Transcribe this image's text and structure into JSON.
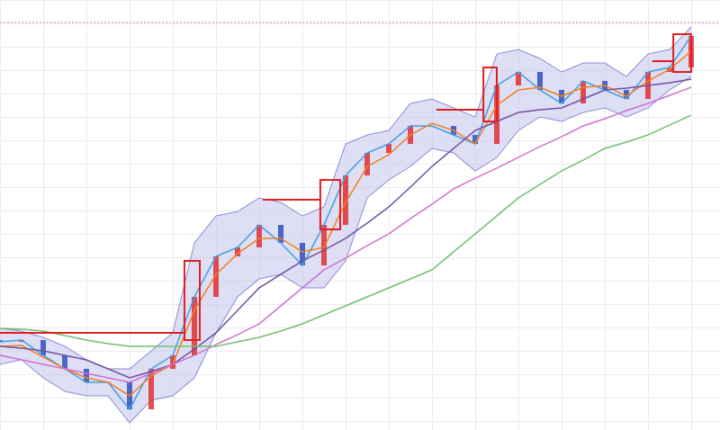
{
  "chart_data": {
    "type": "candlestick",
    "x": [
      0,
      1,
      2,
      3,
      4,
      5,
      6,
      7,
      8,
      9,
      10,
      11,
      12,
      13,
      14,
      15,
      16,
      17,
      18,
      19,
      20,
      21,
      22,
      23,
      24,
      25,
      26,
      27,
      28,
      29,
      30,
      31,
      32
    ],
    "xlim": [
      0,
      32
    ],
    "ylim": [
      0,
      478
    ],
    "candles": {
      "up_color": "#e03030",
      "down_color": "#3050c0",
      "open": [
        100,
        98,
        100,
        83,
        68,
        53,
        53,
        23,
        68,
        83,
        148,
        193,
        203,
        228,
        208,
        183,
        228,
        283,
        308,
        318,
        338,
        338,
        328,
        318,
        383,
        398,
        378,
        363,
        388,
        378,
        368,
        398,
        403
      ],
      "close": [
        98,
        100,
        83,
        68,
        53,
        53,
        23,
        68,
        83,
        148,
        193,
        203,
        228,
        208,
        183,
        228,
        283,
        308,
        318,
        338,
        338,
        328,
        318,
        383,
        398,
        378,
        363,
        388,
        378,
        368,
        398,
        403,
        438
      ]
    },
    "band": {
      "color": "#c8c8ee",
      "line_color": "#8c8cd8",
      "upper": [
        113,
        110,
        103,
        93,
        78,
        68,
        68,
        88,
        108,
        208,
        238,
        243,
        258,
        253,
        238,
        248,
        318,
        328,
        333,
        363,
        368,
        358,
        348,
        418,
        423,
        413,
        398,
        408,
        408,
        393,
        418,
        423,
        448
      ],
      "lower": [
        73,
        78,
        58,
        43,
        38,
        38,
        8,
        33,
        38,
        58,
        108,
        148,
        168,
        173,
        158,
        158,
        188,
        258,
        278,
        293,
        313,
        308,
        288,
        303,
        333,
        348,
        343,
        353,
        358,
        348,
        358,
        378,
        393
      ]
    },
    "series": [
      {
        "color": "#3fa0e0",
        "values": [
          98,
          100,
          83,
          68,
          53,
          53,
          23,
          68,
          83,
          148,
          193,
          203,
          228,
          208,
          183,
          228,
          283,
          308,
          318,
          338,
          338,
          328,
          318,
          383,
          398,
          378,
          363,
          388,
          378,
          368,
          398,
          403,
          438
        ]
      },
      {
        "color": "#f08020",
        "values": [
          93,
          94,
          81,
          68,
          58,
          53,
          38,
          60,
          73,
          133,
          173,
          196,
          213,
          213,
          198,
          203,
          253,
          293,
          306,
          328,
          341,
          333,
          318,
          361,
          378,
          381,
          371,
          381,
          383,
          371,
          388,
          401,
          421
        ]
      },
      {
        "color": "#7050a0",
        "values": [
          93,
          91,
          88,
          83,
          78,
          68,
          58,
          65,
          73,
          90,
          108,
          133,
          158,
          173,
          188,
          200,
          213,
          230,
          248,
          270,
          293,
          313,
          333,
          343,
          353,
          356,
          358,
          368,
          378,
          380,
          383,
          386,
          390
        ]
      },
      {
        "color": "#d070d0",
        "values": [
          83,
          78,
          73,
          68,
          63,
          58,
          53,
          63,
          73,
          83,
          95,
          106,
          118,
          138,
          158,
          178,
          191,
          205,
          218,
          235,
          251,
          268,
          280,
          291,
          303,
          315,
          326,
          338,
          346,
          355,
          363,
          372,
          381
        ]
      },
      {
        "color": "#70c070",
        "values": [
          113,
          112,
          110,
          105,
          100,
          96,
          93,
          93,
          93,
          93,
          93,
          98,
          103,
          110,
          118,
          128,
          138,
          148,
          158,
          168,
          178,
          198,
          218,
          238,
          258,
          273,
          288,
          300,
          313,
          320,
          328,
          339,
          350
        ]
      }
    ],
    "level": {
      "value": 453,
      "color": "#e08080"
    },
    "highlights": {
      "color": "#e02020",
      "boxes": [
        {
          "x": [
            8.54,
            9.25
          ],
          "y": [
            100,
            188
          ],
          "from": {
            "x": 0,
            "y": 108
          }
        },
        {
          "x": [
            14.83,
            15.75
          ],
          "y": [
            223,
            278
          ],
          "from": {
            "x": 12.17,
            "y": 256
          }
        },
        {
          "x": [
            22.38,
            23
          ],
          "y": [
            343,
            403
          ],
          "from": {
            "x": 20.2,
            "y": 356
          }
        },
        {
          "x": [
            31.17,
            32
          ],
          "y": [
            398,
            440
          ],
          "from": {
            "x": 30.2,
            "y": 410
          }
        }
      ]
    }
  }
}
